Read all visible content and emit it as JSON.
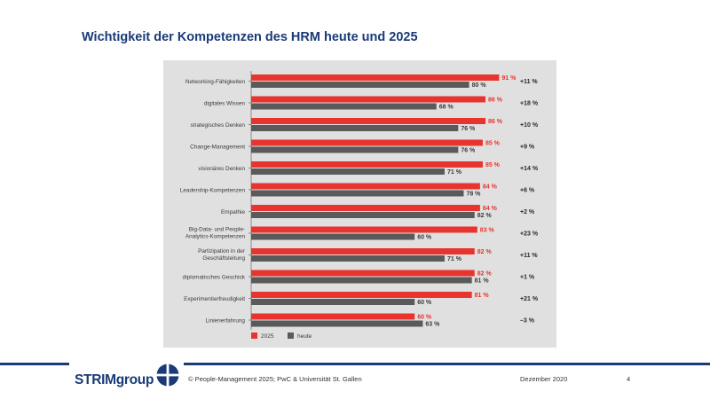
{
  "slide": {
    "title": "Wichtigkeit  der Kompetenzen des HRM heute und 2025"
  },
  "footer": {
    "logo_text": "STRIMgroup",
    "copyright": "© People-Management   2025;  PwC & Universität  St. Gallen",
    "date": "Dezember  2020",
    "page": "4"
  },
  "colors": {
    "series_2025": "#e8342e",
    "series_heute": "#5a5a5a",
    "panel_bg": "#e0e0e0",
    "brand_blue": "#1a3a78"
  },
  "chart_data": {
    "type": "bar",
    "orientation": "horizontal",
    "title": "",
    "xlabel": "",
    "ylabel": "",
    "xlim": [
      0,
      100
    ],
    "categories": [
      [
        "Networking-Fähigkeiten"
      ],
      [
        "digitales Wissen"
      ],
      [
        "strategisches Denken"
      ],
      [
        "Change-Management"
      ],
      [
        "visionäres Denken"
      ],
      [
        "Leadership-Kompetenzen"
      ],
      [
        "Empathie"
      ],
      [
        "Big-Data- und People-",
        "Analytics-Kompetenzen"
      ],
      [
        "Partizipation in der",
        "Geschäftsleitung"
      ],
      [
        "diplomatisches Geschick"
      ],
      [
        "Experimentierfreudigkeit"
      ],
      [
        "Linienerfahrung"
      ]
    ],
    "series": [
      {
        "name": "2025",
        "values": [
          91,
          86,
          86,
          85,
          85,
          84,
          84,
          83,
          82,
          82,
          81,
          60
        ],
        "labels": [
          "91 %",
          "86 %",
          "86 %",
          "85 %",
          "85 %",
          "84 %",
          "84 %",
          "83 %",
          "82 %",
          "82 %",
          "81 %",
          "60 %"
        ]
      },
      {
        "name": "heute",
        "values": [
          80,
          68,
          76,
          76,
          71,
          78,
          82,
          60,
          71,
          81,
          60,
          63
        ],
        "labels": [
          "80 %",
          "68 %",
          "76 %",
          "76 %",
          "71 %",
          "78 %",
          "82 %",
          "60 %",
          "71 %",
          "81 %",
          "60 %",
          "63 %"
        ]
      }
    ],
    "differences": [
      "+11 %",
      "+18 %",
      "+10 %",
      "+9 %",
      "+14 %",
      "+6 %",
      "+2 %",
      "+23 %",
      "+11 %",
      "+1 %",
      "+21 %",
      "–3 %"
    ],
    "legend": {
      "position": "bottom-left",
      "entries": [
        "2025",
        "heute"
      ]
    }
  }
}
